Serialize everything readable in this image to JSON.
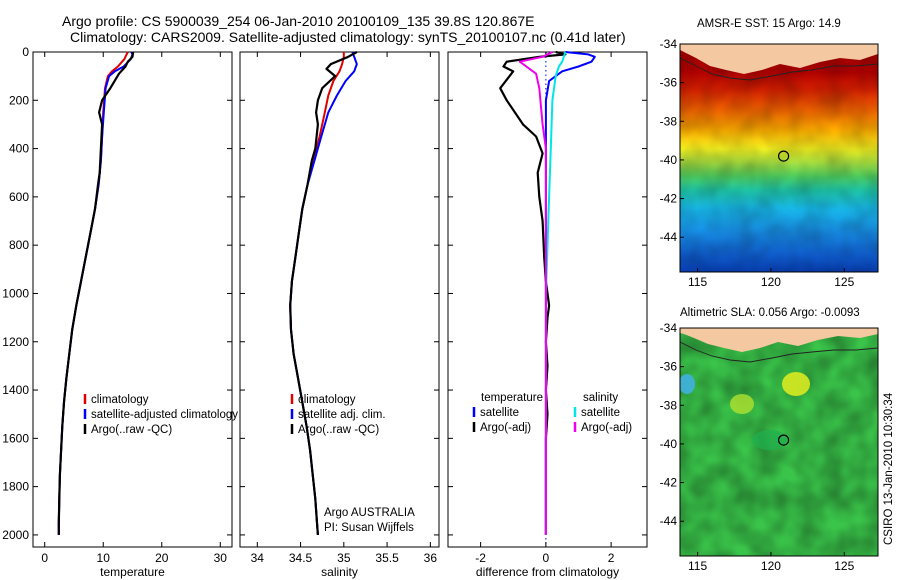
{
  "header": {
    "line1": "Argo profile: CS 5900039_254 06-Jan-2010 20100109_135 39.8S 120.867E",
    "line2": "Climatology: CARS2009. Satellite-adjusted climatology: synTS_20100107.nc (0.41d later)"
  },
  "chart_data": [
    {
      "type": "line",
      "xlabel": "temperature",
      "ylabel": "",
      "xlim": [
        -2,
        32
      ],
      "ylim": [
        2050,
        0
      ],
      "xticks": [
        0,
        10,
        20,
        30
      ],
      "yticks": [
        0,
        200,
        400,
        600,
        800,
        1000,
        1200,
        1400,
        1600,
        1800,
        2000
      ],
      "legend": [
        "climatology",
        "satellite-adjusted climatology",
        "Argo(..raw -QC)"
      ],
      "series": [
        {
          "name": "climatology",
          "color": "#e00000",
          "points": [
            [
              14.2,
              0
            ],
            [
              14.0,
              10
            ],
            [
              13.6,
              30
            ],
            [
              12.5,
              60
            ],
            [
              11.5,
              80
            ],
            [
              10.8,
              100
            ],
            [
              10.3,
              150
            ],
            [
              10.0,
              250
            ],
            [
              9.8,
              350
            ],
            [
              9.6,
              450
            ],
            [
              9.2,
              550
            ],
            [
              8.6,
              650
            ],
            [
              7.8,
              750
            ],
            [
              7.0,
              850
            ],
            [
              6.2,
              950
            ],
            [
              5.4,
              1050
            ],
            [
              4.7,
              1150
            ],
            [
              4.2,
              1250
            ],
            [
              3.7,
              1350
            ],
            [
              3.3,
              1450
            ],
            [
              3.0,
              1550
            ],
            [
              2.8,
              1650
            ],
            [
              2.6,
              1750
            ],
            [
              2.5,
              1850
            ],
            [
              2.4,
              1950
            ],
            [
              2.4,
              2000
            ]
          ]
        },
        {
          "name": "satellite-adjusted climatology",
          "color": "#0000ff",
          "points": [
            [
              14.8,
              0
            ],
            [
              15.0,
              10
            ],
            [
              14.7,
              30
            ],
            [
              13.5,
              60
            ],
            [
              12.0,
              80
            ],
            [
              11.0,
              100
            ],
            [
              10.4,
              150
            ],
            [
              10.1,
              250
            ],
            [
              9.8,
              350
            ],
            [
              9.6,
              450
            ],
            [
              9.2,
              550
            ],
            [
              8.6,
              650
            ],
            [
              7.8,
              750
            ],
            [
              7.0,
              850
            ],
            [
              6.2,
              950
            ],
            [
              5.4,
              1050
            ],
            [
              4.7,
              1150
            ],
            [
              4.2,
              1250
            ],
            [
              3.7,
              1350
            ],
            [
              3.3,
              1450
            ],
            [
              3.0,
              1550
            ],
            [
              2.8,
              1650
            ],
            [
              2.6,
              1750
            ],
            [
              2.5,
              1850
            ],
            [
              2.4,
              1950
            ],
            [
              2.4,
              2000
            ]
          ]
        },
        {
          "name": "Argo(..raw -QC)",
          "color": "#000000",
          "points": [
            [
              15.1,
              0
            ],
            [
              15.0,
              20
            ],
            [
              14.2,
              40
            ],
            [
              13.8,
              60
            ],
            [
              12.7,
              90
            ],
            [
              11.2,
              150
            ],
            [
              9.8,
              200
            ],
            [
              9.3,
              250
            ],
            [
              9.8,
              300
            ],
            [
              9.6,
              400
            ],
            [
              9.4,
              500
            ],
            [
              9.1,
              550
            ],
            [
              8.6,
              650
            ],
            [
              7.8,
              750
            ],
            [
              7.0,
              850
            ],
            [
              6.2,
              950
            ],
            [
              5.4,
              1050
            ],
            [
              4.7,
              1150
            ],
            [
              4.2,
              1250
            ],
            [
              3.7,
              1350
            ],
            [
              3.3,
              1450
            ],
            [
              3.0,
              1550
            ],
            [
              2.8,
              1650
            ],
            [
              2.6,
              1750
            ],
            [
              2.5,
              1850
            ],
            [
              2.4,
              1950
            ],
            [
              2.4,
              2000
            ]
          ]
        }
      ]
    },
    {
      "type": "line",
      "xlabel": "salinity",
      "ylabel": "",
      "xlim": [
        33.8,
        36.1
      ],
      "ylim": [
        2050,
        0
      ],
      "xticks": [
        34,
        34.5,
        35,
        35.5,
        36
      ],
      "yticks": [],
      "legend": [
        "climatology",
        "satellite adj. clim.",
        "Argo(..raw -QC)"
      ],
      "annotation": [
        "Argo AUSTRALIA",
        "PI: Susan Wijffels"
      ],
      "series": [
        {
          "name": "climatology",
          "color": "#e00000",
          "points": [
            [
              35.0,
              0
            ],
            [
              35.0,
              20
            ],
            [
              34.98,
              50
            ],
            [
              34.95,
              80
            ],
            [
              34.88,
              120
            ],
            [
              34.82,
              180
            ],
            [
              34.78,
              250
            ],
            [
              34.72,
              350
            ],
            [
              34.65,
              450
            ],
            [
              34.58,
              550
            ],
            [
              34.52,
              650
            ],
            [
              34.48,
              750
            ],
            [
              34.44,
              850
            ],
            [
              34.4,
              950
            ],
            [
              34.38,
              1050
            ],
            [
              34.39,
              1150
            ],
            [
              34.42,
              1250
            ],
            [
              34.47,
              1350
            ],
            [
              34.52,
              1450
            ],
            [
              34.57,
              1550
            ],
            [
              34.61,
              1650
            ],
            [
              34.64,
              1750
            ],
            [
              34.67,
              1850
            ],
            [
              34.69,
              1950
            ],
            [
              34.7,
              2000
            ]
          ]
        },
        {
          "name": "satellite adj. clim.",
          "color": "#0000ff",
          "points": [
            [
              35.1,
              0
            ],
            [
              35.12,
              20
            ],
            [
              35.15,
              50
            ],
            [
              35.12,
              80
            ],
            [
              35.02,
              120
            ],
            [
              34.92,
              180
            ],
            [
              34.82,
              250
            ],
            [
              34.74,
              350
            ],
            [
              34.66,
              450
            ],
            [
              34.58,
              550
            ],
            [
              34.52,
              650
            ],
            [
              34.48,
              750
            ],
            [
              34.44,
              850
            ],
            [
              34.4,
              950
            ],
            [
              34.38,
              1050
            ],
            [
              34.39,
              1150
            ],
            [
              34.42,
              1250
            ],
            [
              34.47,
              1350
            ],
            [
              34.52,
              1450
            ],
            [
              34.57,
              1550
            ],
            [
              34.61,
              1650
            ],
            [
              34.64,
              1750
            ],
            [
              34.67,
              1850
            ],
            [
              34.69,
              1950
            ],
            [
              34.7,
              2000
            ]
          ]
        },
        {
          "name": "Argo(..raw -QC)",
          "color": "#000000",
          "points": [
            [
              35.15,
              0
            ],
            [
              35.05,
              20
            ],
            [
              34.85,
              50
            ],
            [
              34.8,
              70
            ],
            [
              34.9,
              100
            ],
            [
              34.75,
              150
            ],
            [
              34.7,
              200
            ],
            [
              34.68,
              250
            ],
            [
              34.7,
              300
            ],
            [
              34.67,
              400
            ],
            [
              34.63,
              450
            ],
            [
              34.58,
              550
            ],
            [
              34.52,
              650
            ],
            [
              34.48,
              750
            ],
            [
              34.44,
              850
            ],
            [
              34.4,
              950
            ],
            [
              34.38,
              1050
            ],
            [
              34.39,
              1150
            ],
            [
              34.42,
              1250
            ],
            [
              34.47,
              1350
            ],
            [
              34.52,
              1450
            ],
            [
              34.57,
              1550
            ],
            [
              34.61,
              1650
            ],
            [
              34.64,
              1750
            ],
            [
              34.67,
              1850
            ],
            [
              34.69,
              1950
            ],
            [
              34.7,
              2000
            ]
          ]
        }
      ]
    },
    {
      "type": "line",
      "xlabel": "difference from climatology",
      "ylabel": "",
      "xlim": [
        -3,
        3.1
      ],
      "ylim": [
        2050,
        0
      ],
      "xticks": [
        -2,
        0,
        2
      ],
      "yticks": [],
      "legend_headers": [
        "temperature",
        "salinity"
      ],
      "legend": [
        "satellite",
        "Argo(-adj)",
        "satellite",
        "Argo(-adj)"
      ],
      "series": [
        {
          "name": "satellite",
          "group": "temperature",
          "color": "#0000ff",
          "points": [
            [
              0.6,
              0
            ],
            [
              1.3,
              10
            ],
            [
              1.5,
              20
            ],
            [
              1.4,
              40
            ],
            [
              1.0,
              60
            ],
            [
              0.5,
              80
            ],
            [
              0.1,
              120
            ],
            [
              0.0,
              200
            ],
            [
              0.0,
              2000
            ]
          ]
        },
        {
          "name": "Argo(-adj)",
          "group": "temperature",
          "color": "#000000",
          "points": [
            [
              0.3,
              0
            ],
            [
              0.6,
              10
            ],
            [
              -0.2,
              20
            ],
            [
              -1.2,
              40
            ],
            [
              -1.3,
              60
            ],
            [
              -1.0,
              80
            ],
            [
              -1.4,
              150
            ],
            [
              -1.2,
              200
            ],
            [
              -0.7,
              300
            ],
            [
              -0.3,
              350
            ],
            [
              -0.1,
              420
            ],
            [
              -0.25,
              500
            ],
            [
              -0.2,
              600
            ],
            [
              -0.1,
              700
            ],
            [
              -0.05,
              850
            ],
            [
              0.0,
              950
            ],
            [
              0.1,
              1050
            ],
            [
              0.05,
              1100
            ],
            [
              0.0,
              1200
            ],
            [
              0.05,
              1300
            ],
            [
              0.0,
              1400
            ],
            [
              0.05,
              1500
            ],
            [
              0.0,
              1600
            ],
            [
              0.0,
              1800
            ],
            [
              0.0,
              2000
            ]
          ]
        },
        {
          "name": "satellite",
          "group": "salinity",
          "color": "#00e5e5",
          "points": [
            [
              0.6,
              0
            ],
            [
              0.55,
              20
            ],
            [
              0.5,
              40
            ],
            [
              0.4,
              60
            ],
            [
              0.3,
              100
            ],
            [
              0.2,
              200
            ],
            [
              0.15,
              400
            ],
            [
              0.1,
              600
            ],
            [
              0.05,
              800
            ],
            [
              0.0,
              1000
            ],
            [
              0.0,
              2000
            ]
          ]
        },
        {
          "name": "Argo(-adj)",
          "group": "salinity",
          "color": "#ee00ee",
          "points": [
            [
              0.2,
              0
            ],
            [
              -0.1,
              20
            ],
            [
              -0.8,
              40
            ],
            [
              -0.6,
              60
            ],
            [
              -0.3,
              90
            ],
            [
              -0.2,
              150
            ],
            [
              -0.1,
              300
            ],
            [
              0.0,
              400
            ],
            [
              0.0,
              2000
            ]
          ]
        }
      ]
    }
  ],
  "maps": [
    {
      "title": "AMSR-E SST: 15 Argo: 14.9",
      "xticks": [
        115,
        120,
        125
      ],
      "yticks": [
        -34,
        -36,
        -38,
        -40,
        -42,
        -44
      ],
      "lon_range": [
        113.8,
        127.3
      ],
      "lat_range": [
        -45.8,
        -34.0
      ],
      "marker": {
        "lon": 120.867,
        "lat": -39.8
      }
    },
    {
      "title": "Altimetric SLA: 0.056 Argo: -0.0093",
      "xticks": [
        115,
        120,
        125
      ],
      "yticks": [
        -34,
        -36,
        -38,
        -40,
        -42,
        -44
      ],
      "lon_range": [
        113.8,
        127.3
      ],
      "lat_range": [
        -45.8,
        -34.0
      ],
      "marker": {
        "lon": 120.867,
        "lat": -39.8
      }
    }
  ],
  "side_label": "CSIRO 13-Jan-2010 10:30:34",
  "colors": {
    "land": "#f4c8a0",
    "axis": "#000000"
  }
}
